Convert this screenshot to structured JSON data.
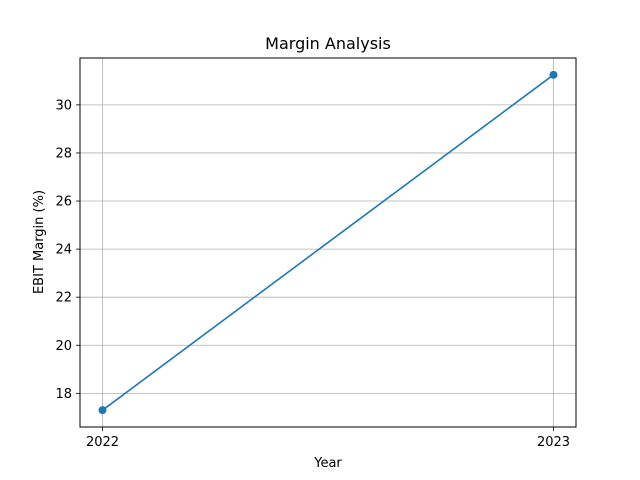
{
  "chart_data": {
    "type": "line",
    "title": "Margin Analysis",
    "xlabel": "Year",
    "ylabel": "EBIT Margin (%)",
    "x": [
      "2022",
      "2023"
    ],
    "series": [
      {
        "values": [
          17.3,
          31.25
        ]
      }
    ],
    "ylim": [
      16.6,
      31.95
    ],
    "yticks": [
      "18",
      "20",
      "22",
      "24",
      "26",
      "28",
      "30"
    ],
    "grid": true,
    "line_color": "#1f77b4",
    "grid_color": "#b0b0b0"
  }
}
